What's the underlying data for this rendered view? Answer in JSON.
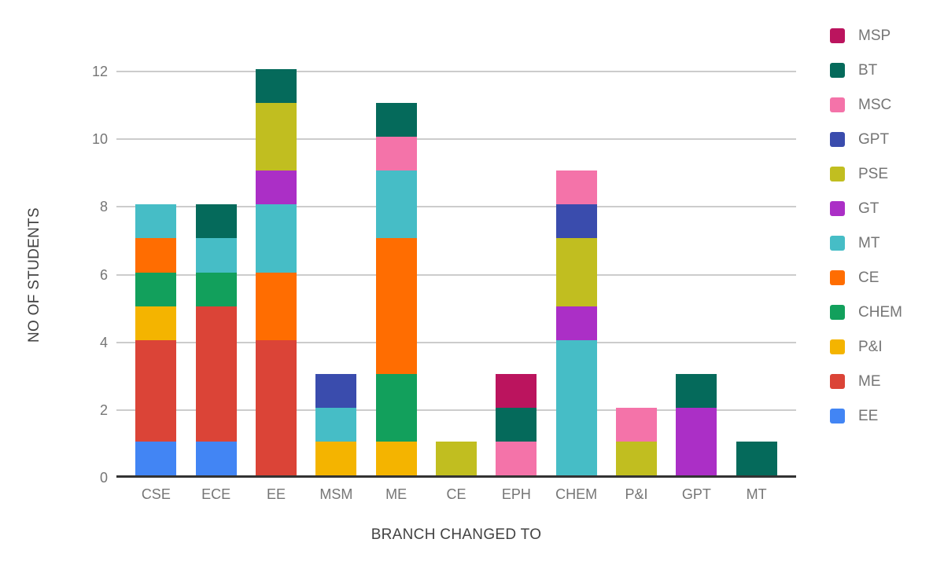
{
  "chart_data": {
    "type": "bar",
    "stacked": true,
    "title": "",
    "xlabel": "BRANCH CHANGED TO",
    "ylabel": "NO OF STUDENTS",
    "ylim": [
      0,
      12
    ],
    "yticks": [
      0,
      2,
      4,
      6,
      8,
      10,
      12
    ],
    "grid": true,
    "legend_position": "right",
    "legend_order_top_to_bottom": [
      "MSP",
      "BT",
      "MSC",
      "GPT",
      "PSE",
      "GT",
      "MT",
      "CE",
      "CHEM",
      "P&I",
      "ME",
      "EE"
    ],
    "categories": [
      "CSE",
      "ECE",
      "EE",
      "MSM",
      "ME",
      "CE",
      "EPH",
      "CHEM",
      "P&I",
      "GPT",
      "MT"
    ],
    "series": [
      {
        "name": "EE",
        "color": "#4285F4",
        "values": [
          1,
          1,
          0,
          0,
          0,
          0,
          0,
          0,
          0,
          0,
          0
        ]
      },
      {
        "name": "ME",
        "color": "#DB4437",
        "values": [
          3,
          4,
          4,
          0,
          0,
          0,
          0,
          0,
          0,
          0,
          0
        ]
      },
      {
        "name": "P&I",
        "color": "#F4B400",
        "values": [
          1,
          0,
          0,
          1,
          1,
          0,
          0,
          0,
          0,
          0,
          0
        ]
      },
      {
        "name": "CHEM",
        "color": "#12A05C",
        "values": [
          1,
          1,
          0,
          0,
          2,
          0,
          0,
          0,
          0,
          0,
          0
        ]
      },
      {
        "name": "CE",
        "color": "#FF6D01",
        "values": [
          1,
          0,
          2,
          0,
          4,
          0,
          0,
          0,
          0,
          0,
          0
        ]
      },
      {
        "name": "MT",
        "color": "#46BDC6",
        "values": [
          1,
          1,
          2,
          1,
          2,
          0,
          0,
          4,
          0,
          0,
          0
        ]
      },
      {
        "name": "GT",
        "color": "#AB2FC6",
        "values": [
          0,
          0,
          1,
          0,
          0,
          0,
          0,
          1,
          0,
          2,
          0
        ]
      },
      {
        "name": "PSE",
        "color": "#C1BE20",
        "values": [
          0,
          0,
          2,
          0,
          0,
          1,
          0,
          2,
          1,
          0,
          0
        ]
      },
      {
        "name": "GPT",
        "color": "#3A4CAD",
        "values": [
          0,
          0,
          0,
          1,
          0,
          0,
          0,
          1,
          0,
          0,
          0
        ]
      },
      {
        "name": "MSC",
        "color": "#F473A9",
        "values": [
          0,
          0,
          0,
          0,
          1,
          0,
          1,
          1,
          1,
          0,
          0
        ]
      },
      {
        "name": "BT",
        "color": "#056A5B",
        "values": [
          0,
          1,
          1,
          0,
          1,
          0,
          1,
          0,
          0,
          1,
          1
        ]
      },
      {
        "name": "MSP",
        "color": "#BB145E",
        "values": [
          0,
          0,
          0,
          0,
          0,
          0,
          1,
          0,
          0,
          0,
          0
        ]
      }
    ],
    "category_totals": [
      8,
      8,
      12,
      3,
      11,
      1,
      3,
      9,
      2,
      3,
      1
    ]
  },
  "styles": {
    "background": "#ffffff",
    "grid_color": "#cccccc",
    "axis_line_color": "#333333",
    "tick_label_color": "#757575",
    "axis_title_color": "#424242",
    "legend_label_color": "#757575"
  }
}
